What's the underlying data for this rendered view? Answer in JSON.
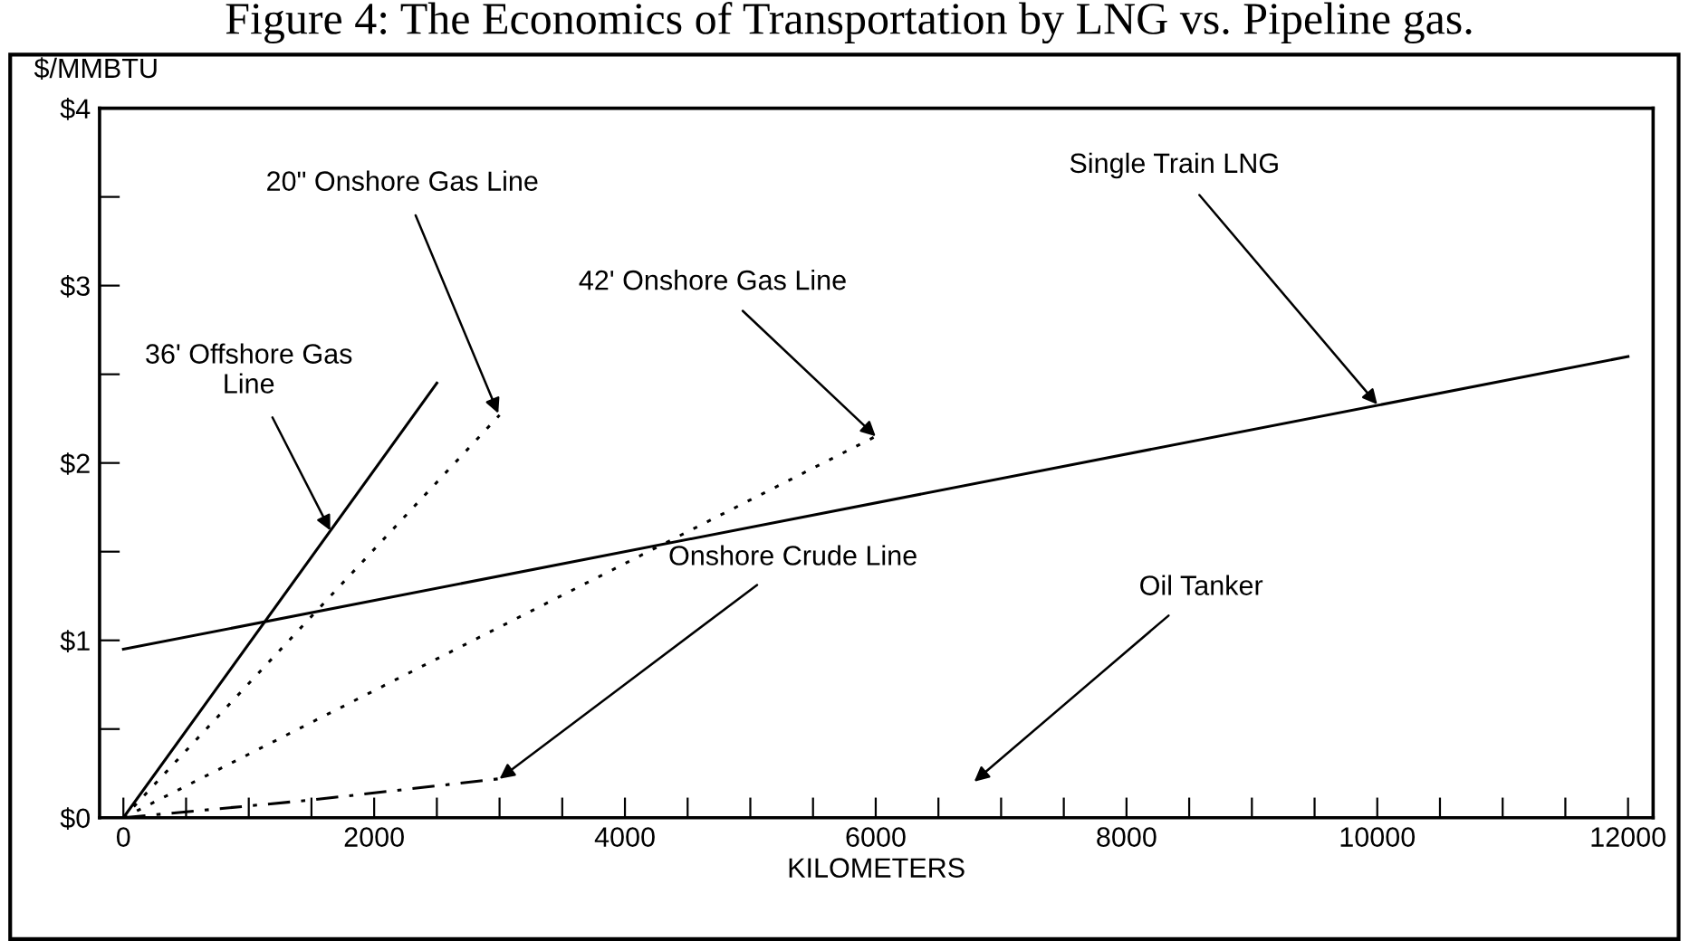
{
  "chart_data": {
    "type": "line",
    "title": "Figure 4: The Economics of Transportation by LNG vs. Pipeline gas.",
    "xlabel": "KILOMETERS",
    "ylabel": "$/MMBTU",
    "xlim": [
      -190,
      12200
    ],
    "ylim": [
      0,
      4
    ],
    "xticks": [
      0,
      {
        "value": 500,
        "label": null
      },
      {
        "value": 1000,
        "label": null
      },
      {
        "value": 1500,
        "label": null
      },
      2000,
      {
        "value": 2500,
        "label": null
      },
      {
        "value": 3000,
        "label": null
      },
      {
        "value": 3500,
        "label": null
      },
      4000,
      {
        "value": 4500,
        "label": null
      },
      {
        "value": 5000,
        "label": null
      },
      {
        "value": 5500,
        "label": null
      },
      6000,
      {
        "value": 6500,
        "label": null
      },
      {
        "value": 7000,
        "label": null
      },
      {
        "value": 7500,
        "label": null
      },
      8000,
      {
        "value": 8500,
        "label": null
      },
      {
        "value": 9000,
        "label": null
      },
      {
        "value": 9500,
        "label": null
      },
      10000,
      {
        "value": 10500,
        "label": null
      },
      {
        "value": 11000,
        "label": null
      },
      {
        "value": 11500,
        "label": null
      },
      12000
    ],
    "yticks": [
      {
        "value": 0,
        "label": "$0"
      },
      {
        "value": 0.5,
        "label": null
      },
      {
        "value": 1,
        "label": "$1"
      },
      {
        "value": 1.5,
        "label": null
      },
      {
        "value": 2,
        "label": "$2"
      },
      {
        "value": 2.5,
        "label": null
      },
      {
        "value": 3,
        "label": "$3"
      },
      {
        "value": 3.5,
        "label": null
      },
      {
        "value": 4,
        "label": "$4"
      }
    ],
    "grid": false,
    "legend": false,
    "marker": "none",
    "series": [
      {
        "color": "#000000",
        "line_style": "solid",
        "x": [
          0,
          2500
        ],
        "values": [
          0,
          2.45
        ]
      },
      {
        "color": "#000000",
        "line_style": "dotted",
        "x": [
          0,
          3000
        ],
        "values": [
          0,
          2.27
        ]
      },
      {
        "color": "#000000",
        "line_style": "dotted",
        "x": [
          0,
          6000
        ],
        "values": [
          0,
          2.15
        ]
      },
      {
        "color": "#000000",
        "line_style": "solid",
        "x": [
          0,
          12000
        ],
        "values": [
          0.95,
          2.6
        ]
      },
      {
        "color": "#000000",
        "line_style": "dashed",
        "x": [
          0,
          1500,
          3000
        ],
        "values": [
          0,
          0.1,
          0.22
        ]
      }
    ],
    "annotations": [
      {
        "text": "20\" Onshore Gas Line",
        "x": 2990,
        "y": 2.28
      },
      {
        "text": "42' Onshore Gas Line",
        "x": 6000,
        "y": 2.15
      },
      {
        "text": "36' Offshore Gas\nLine",
        "x": 1650,
        "y": 1.62
      },
      {
        "text": "Single Train LNG",
        "x": 10000,
        "y": 2.33
      },
      {
        "text": "Onshore Crude Line",
        "x": 3000,
        "y": 0.22
      },
      "Oil Tanker"
    ]
  }
}
